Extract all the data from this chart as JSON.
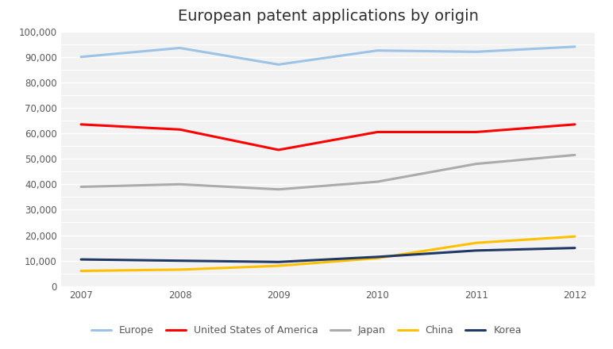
{
  "title": "European patent applications by origin",
  "years": [
    2007,
    2008,
    2009,
    2010,
    2011,
    2012
  ],
  "series": {
    "Europe": {
      "values": [
        90000,
        93500,
        87000,
        92500,
        92000,
        94000
      ],
      "color": "#9DC3E6",
      "linewidth": 2.2
    },
    "United States of America": {
      "values": [
        63500,
        61500,
        53500,
        60500,
        60500,
        63500
      ],
      "color": "#FF0000",
      "linewidth": 2.2
    },
    "Japan": {
      "values": [
        39000,
        40000,
        38000,
        41000,
        48000,
        51500
      ],
      "color": "#ABABAB",
      "linewidth": 2.2
    },
    "China": {
      "values": [
        6000,
        6500,
        8000,
        11000,
        17000,
        19500
      ],
      "color": "#FFC000",
      "linewidth": 2.2
    },
    "Korea": {
      "values": [
        10500,
        10000,
        9500,
        11500,
        14000,
        15000
      ],
      "color": "#1F3864",
      "linewidth": 2.2
    }
  },
  "ylim": [
    0,
    100000
  ],
  "yticks": [
    0,
    10000,
    20000,
    30000,
    40000,
    50000,
    60000,
    70000,
    80000,
    90000,
    100000
  ],
  "minor_yticks": [
    5000,
    15000,
    25000,
    35000,
    45000,
    55000,
    65000,
    75000,
    85000,
    95000
  ],
  "background_color": "#FFFFFF",
  "plot_bg_color": "#F2F2F2",
  "grid_color": "#FFFFFF",
  "minor_grid_color": "#FFFFFF",
  "title_fontsize": 14,
  "legend_fontsize": 9,
  "tick_fontsize": 8.5
}
